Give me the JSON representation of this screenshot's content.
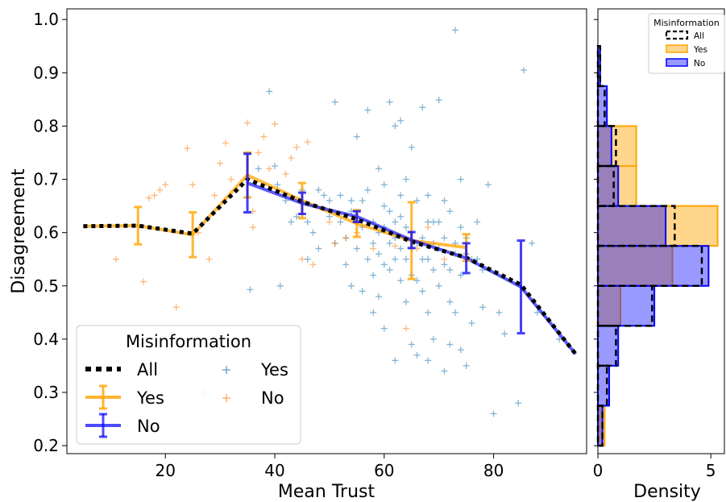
{
  "chart_data": [
    {
      "type": "line",
      "xlabel": "Mean Trust",
      "ylabel": "Disagreement",
      "xlim": [
        2,
        97
      ],
      "ylim": [
        0.185,
        1.02
      ],
      "xticks": [
        "20",
        "40",
        "60",
        "80"
      ],
      "yticks": [
        "0.2",
        "0.3",
        "0.4",
        "0.5",
        "0.6",
        "0.7",
        "0.8",
        "0.9",
        "1.0"
      ],
      "grid": false,
      "legend": {
        "title": "Misinformation",
        "placement": "lower-left",
        "lines": [
          {
            "label": "All",
            "color": "#000000",
            "style": "dotted"
          },
          {
            "label": "Yes",
            "color": "#ffa500",
            "style": "errorbar"
          },
          {
            "label": "No",
            "color": "#0000ff",
            "style": "errorbar"
          }
        ],
        "markers": [
          {
            "label": "Yes",
            "color": "#1f77b4"
          },
          {
            "label": "No",
            "color": "#ff7f0e"
          }
        ]
      },
      "series": [
        {
          "name": "All",
          "color": "#000000",
          "x": [
            5,
            15,
            25,
            35,
            45,
            55,
            65,
            75,
            85,
            95
          ],
          "y": [
            0.612,
            0.613,
            0.598,
            0.7,
            0.658,
            0.625,
            0.583,
            0.553,
            0.502,
            0.372
          ]
        },
        {
          "name": "Yes",
          "color": "#ffa500",
          "x": [
            5,
            15,
            25,
            35,
            45,
            55,
            65,
            75
          ],
          "y": [
            0.612,
            0.613,
            0.596,
            0.708,
            0.66,
            0.617,
            0.585,
            0.572
          ],
          "err": [
            0,
            0.035,
            0.042,
            0.042,
            0.033,
            0.025,
            0.072,
            0.025
          ]
        },
        {
          "name": "No",
          "color": "#0000ff",
          "x": [
            35,
            45,
            55,
            65,
            75,
            85,
            95
          ],
          "y": [
            0.693,
            0.655,
            0.63,
            0.586,
            0.552,
            0.498,
            0.372
          ],
          "err": [
            0.055,
            0.02,
            0.01,
            0.015,
            0.028,
            0.087,
            0
          ]
        }
      ],
      "scatter": [
        {
          "name": "Yes",
          "color": "#1f77b4",
          "points": [
            [
              35.5,
              0.493
            ],
            [
              37,
              0.72
            ],
            [
              38,
              0.69
            ],
            [
              39,
              0.865
            ],
            [
              40,
              0.725
            ],
            [
              41,
              0.5
            ],
            [
              43,
              0.62
            ],
            [
              44,
              0.63
            ],
            [
              45,
              0.68
            ],
            [
              46,
              0.62
            ],
            [
              47,
              0.6
            ],
            [
              48,
              0.57
            ],
            [
              49,
              0.67
            ],
            [
              50,
              0.63
            ],
            [
              51,
              0.845
            ],
            [
              51,
              0.58
            ],
            [
              52,
              0.62
            ],
            [
              53,
              0.54
            ],
            [
              54,
              0.64
            ],
            [
              55,
              0.78
            ],
            [
              55,
              0.57
            ],
            [
              56,
              0.61
            ],
            [
              56,
              0.49
            ],
            [
              57,
              0.83
            ],
            [
              57,
              0.68
            ],
            [
              57,
              0.55
            ],
            [
              58,
              0.62
            ],
            [
              58,
              0.52
            ],
            [
              58,
              0.45
            ],
            [
              59,
              0.72
            ],
            [
              59,
              0.6
            ],
            [
              59,
              0.56
            ],
            [
              59,
              0.48
            ],
            [
              60,
              0.69
            ],
            [
              60,
              0.61
            ],
            [
              60,
              0.54
            ],
            [
              60,
              0.42
            ],
            [
              61,
              0.845
            ],
            [
              61,
              0.58
            ],
            [
              61,
              0.53
            ],
            [
              62,
              0.8
            ],
            [
              62,
              0.62
            ],
            [
              62,
              0.55
            ],
            [
              62,
              0.36
            ],
            [
              63,
              0.81
            ],
            [
              63,
              0.63
            ],
            [
              63,
              0.57
            ],
            [
              63,
              0.51
            ],
            [
              64,
              0.7
            ],
            [
              64,
              0.55
            ],
            [
              64,
              0.47
            ],
            [
              65,
              0.76
            ],
            [
              65,
              0.6
            ],
            [
              65,
              0.52
            ],
            [
              65,
              0.39
            ],
            [
              66,
              0.66
            ],
            [
              66,
              0.51
            ],
            [
              66,
              0.37
            ],
            [
              67,
              0.835
            ],
            [
              67,
              0.59
            ],
            [
              67,
              0.49
            ],
            [
              68,
              0.67
            ],
            [
              68,
              0.55
            ],
            [
              68,
              0.45
            ],
            [
              68,
              0.36
            ],
            [
              69,
              0.58
            ],
            [
              69,
              0.53
            ],
            [
              69,
              0.4
            ],
            [
              70,
              0.849
            ],
            [
              70,
              0.62
            ],
            [
              70,
              0.5
            ],
            [
              71,
              0.66
            ],
            [
              71,
              0.59
            ],
            [
              71,
              0.34
            ],
            [
              72,
              0.53
            ],
            [
              72,
              0.47
            ],
            [
              72,
              0.39
            ],
            [
              73,
              0.98
            ],
            [
              73,
              0.58
            ],
            [
              73,
              0.45
            ],
            [
              74,
              0.7
            ],
            [
              74,
              0.52
            ],
            [
              74,
              0.38
            ],
            [
              75,
              0.56
            ],
            [
              75,
              0.35
            ],
            [
              76,
              0.43
            ],
            [
              77,
              0.55
            ],
            [
              78,
              0.46
            ],
            [
              79,
              0.69
            ],
            [
              80,
              0.26
            ],
            [
              81,
              0.45
            ],
            [
              82,
              0.41
            ],
            [
              84.5,
              0.28
            ],
            [
              85.5,
              0.905
            ],
            [
              87,
              0.58
            ],
            [
              88,
              0.45
            ],
            [
              92,
              0.4
            ],
            [
              40.5,
              0.69
            ],
            [
              42,
              0.66
            ],
            [
              46,
              0.55
            ],
            [
              48,
              0.68
            ],
            [
              50,
              0.66
            ],
            [
              52,
              0.67
            ],
            [
              53,
              0.59
            ],
            [
              54,
              0.66
            ],
            [
              54,
              0.5
            ],
            [
              56,
              0.66
            ],
            [
              58,
              0.58
            ],
            [
              60,
              0.65
            ],
            [
              61,
              0.64
            ],
            [
              62,
              0.59
            ],
            [
              63,
              0.67
            ],
            [
              64,
              0.61
            ],
            [
              65,
              0.57
            ],
            [
              66,
              0.58
            ],
            [
              67,
              0.55
            ],
            [
              68,
              0.62
            ],
            [
              69,
              0.62
            ],
            [
              70,
              0.57
            ],
            [
              71,
              0.54
            ],
            [
              72,
              0.64
            ],
            [
              73,
              0.56
            ],
            [
              74,
              0.61
            ],
            [
              75,
              0.59
            ],
            [
              76,
              0.55
            ],
            [
              77,
              0.62
            ],
            [
              78,
              0.53
            ]
          ]
        },
        {
          "name": "No",
          "color": "#ff7f0e",
          "points": [
            [
              11,
              0.55
            ],
            [
              16,
              0.508
            ],
            [
              17,
              0.665
            ],
            [
              18,
              0.67
            ],
            [
              19,
              0.68
            ],
            [
              20,
              0.69
            ],
            [
              22,
              0.46
            ],
            [
              24,
              0.758
            ],
            [
              25,
              0.69
            ],
            [
              26,
              0.6
            ],
            [
              27,
              0.3
            ],
            [
              28,
              0.55
            ],
            [
              29,
              0.67
            ],
            [
              30,
              0.73
            ],
            [
              31,
              0.768
            ],
            [
              32,
              0.7
            ],
            [
              33,
              0.68
            ],
            [
              34,
              0.69
            ],
            [
              35,
              0.806
            ],
            [
              36,
              0.64
            ],
            [
              36,
              0.61
            ],
            [
              37,
              0.75
            ],
            [
              38,
              0.78
            ],
            [
              39,
              0.72
            ],
            [
              40,
              0.804
            ],
            [
              42,
              0.71
            ],
            [
              43,
              0.74
            ],
            [
              44,
              0.76
            ],
            [
              45,
              0.55
            ],
            [
              46,
              0.77
            ],
            [
              47,
              0.54
            ],
            [
              50,
              0.62
            ],
            [
              51,
              0.58
            ],
            [
              53,
              0.59
            ],
            [
              55,
              0.6
            ],
            [
              58,
              0.57
            ],
            [
              62,
              0.575
            ],
            [
              64,
              0.42
            ],
            [
              66,
              0.57
            ],
            [
              68,
              0.61
            ],
            [
              71,
              0.55
            ],
            [
              75,
              0.56
            ]
          ]
        }
      ]
    },
    {
      "type": "histogram",
      "orientation": "horizontal",
      "xlabel": "Density",
      "xlim": [
        0,
        5.6
      ],
      "xticks": [
        "0",
        "5"
      ],
      "shared_y_with": "left panel",
      "bin_edges": [
        0.2,
        0.275,
        0.35,
        0.425,
        0.5,
        0.575,
        0.65,
        0.725,
        0.8,
        0.875,
        0.95
      ],
      "legend": {
        "title": "Misinformation",
        "placement": "top-right",
        "entries": [
          {
            "label": "All",
            "style": "dashed-outline",
            "color": "#000000"
          },
          {
            "label": "Yes",
            "style": "filled",
            "color": "#ffa500"
          },
          {
            "label": "No",
            "style": "filled",
            "color": "#0000ff"
          }
        ]
      },
      "series": [
        {
          "name": "All",
          "style": "dashed-outline",
          "color": "#000000",
          "values": [
            0.2,
            0.4,
            0.8,
            2.4,
            4.6,
            3.4,
            0.7,
            0.8,
            0.3,
            0.1
          ]
        },
        {
          "name": "Yes",
          "color": "#ffa500",
          "values": [
            0.3,
            0.0,
            0.0,
            1.0,
            3.3,
            5.3,
            1.7,
            1.7,
            0.0,
            0.0
          ]
        },
        {
          "name": "No",
          "color": "#0000ff",
          "values": [
            0.2,
            0.5,
            0.9,
            2.5,
            4.9,
            3.0,
            0.9,
            0.6,
            0.4,
            0.1
          ]
        }
      ]
    }
  ]
}
